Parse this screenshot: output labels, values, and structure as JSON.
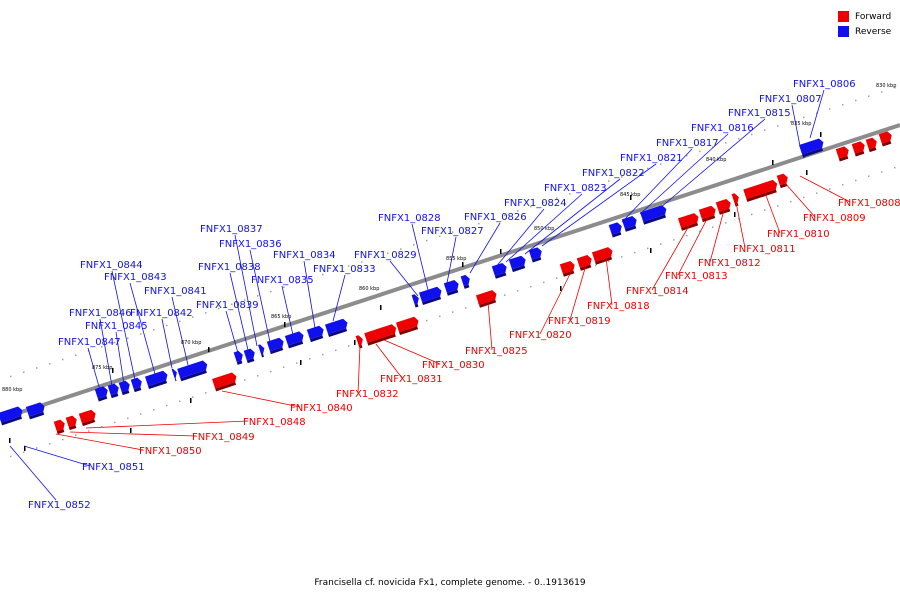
{
  "colors": {
    "forward": "#ee0000",
    "reverse": "#1010ee",
    "axis": "#8c8c8c"
  },
  "legend": [
    {
      "label": "Forward",
      "color": "#ee0000",
      "icon": "red-square"
    },
    {
      "label": "Reverse",
      "color": "#1010ee",
      "icon": "blue-square"
    }
  ],
  "caption": "Francisella cf. novicida Fx1, complete genome. - 0..1913619",
  "scale_labels": [
    "830 kbp",
    "835 kbp",
    "840 kbp",
    "845 kbp",
    "850 kbp",
    "855 kbp",
    "860 kbp",
    "865 kbp",
    "870 kbp",
    "875 kbp",
    "880 kbp"
  ],
  "genes_reverse": [
    "FNFX1_0806",
    "FNFX1_0807",
    "FNFX1_0815",
    "FNFX1_0816",
    "FNFX1_0817",
    "FNFX1_0821",
    "FNFX1_0822",
    "FNFX1_0823",
    "FNFX1_0824",
    "FNFX1_0826",
    "FNFX1_0827",
    "FNFX1_0828",
    "FNFX1_0829",
    "FNFX1_0833",
    "FNFX1_0834",
    "FNFX1_0835",
    "FNFX1_0836",
    "FNFX1_0837",
    "FNFX1_0838",
    "FNFX1_0839",
    "FNFX1_0841",
    "FNFX1_0842",
    "FNFX1_0843",
    "FNFX1_0844",
    "FNFX1_0845",
    "FNFX1_0846",
    "FNFX1_0847",
    "FNFX1_0851",
    "FNFX1_0852"
  ],
  "genes_forward": [
    "FNFX1_0808",
    "FNFX1_0809",
    "FNFX1_0810",
    "FNFX1_0811",
    "FNFX1_0812",
    "FNFX1_0813",
    "FNFX1_0814",
    "FNFX1_0818",
    "FNFX1_0819",
    "FNFX1_0820",
    "FNFX1_0825",
    "FNFX1_0830",
    "FNFX1_0831",
    "FNFX1_0832",
    "FNFX1_0840",
    "FNFX1_0848",
    "FNFX1_0849",
    "FNFX1_0850"
  ]
}
